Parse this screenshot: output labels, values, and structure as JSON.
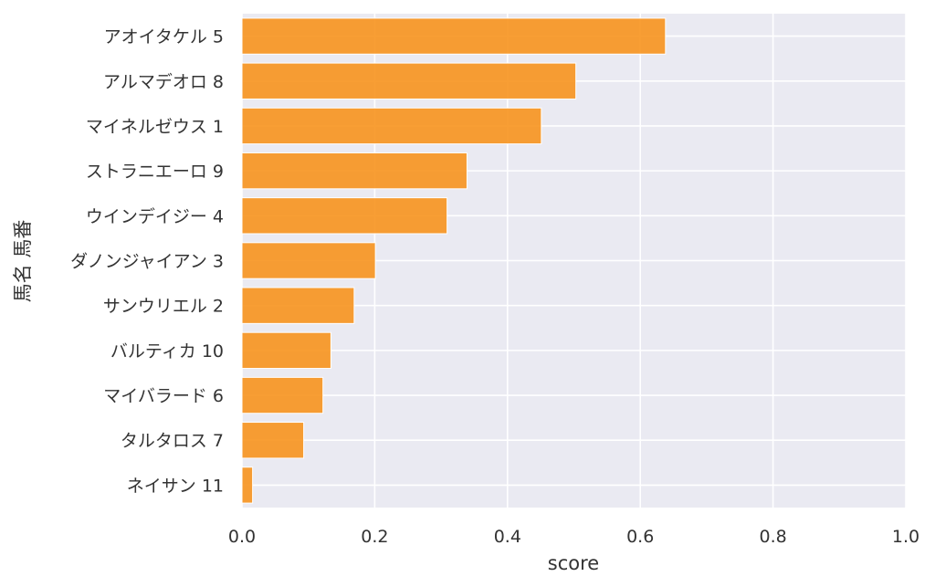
{
  "chart_data": {
    "type": "bar",
    "orientation": "horizontal",
    "title": "",
    "xlabel": "score",
    "ylabel": "馬名 馬番",
    "xlim": [
      0.0,
      1.0
    ],
    "xticks": [
      "0.0",
      "0.2",
      "0.4",
      "0.6",
      "0.8",
      "1.0"
    ],
    "grid": true,
    "bar_color": "#f7931e",
    "background_color": "#eaeaf2",
    "categories": [
      "アオイタケル 5",
      "アルマデオロ 8",
      "マイネルゼウス 1",
      "ストラニエーロ 9",
      "ウインデイジー 4",
      "ダノンジャイアン 3",
      "サンウリエル 2",
      "バルティカ 10",
      "マイバラード 6",
      "タルタロス 7",
      "ネイサン 11"
    ],
    "values": [
      0.638,
      0.503,
      0.451,
      0.339,
      0.309,
      0.201,
      0.169,
      0.134,
      0.122,
      0.093,
      0.016
    ]
  }
}
